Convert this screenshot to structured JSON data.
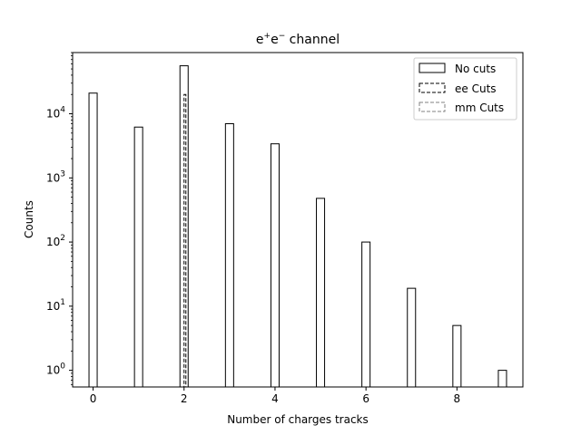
{
  "chart_data": {
    "type": "bar",
    "title_main": "e",
    "title_sup1": "+",
    "title_mid": "e",
    "title_sup2": "−",
    "title_tail": " channel",
    "xlabel": "Number of charges tracks",
    "ylabel": "Counts",
    "x_ticks": [
      "0",
      "2",
      "4",
      "6",
      "8"
    ],
    "y_ticks": [
      {
        "base": "10",
        "exp": "0"
      },
      {
        "base": "10",
        "exp": "1"
      },
      {
        "base": "10",
        "exp": "2"
      },
      {
        "base": "10",
        "exp": "3"
      },
      {
        "base": "10",
        "exp": "4"
      }
    ],
    "xlim": [
      -0.45,
      9.45
    ],
    "ylim": [
      0.55,
      90000
    ],
    "log_y": true,
    "grid": false,
    "legend_position": "top-right",
    "bin_width": 0.18,
    "series": [
      {
        "name": "No cuts",
        "style": "solid",
        "color": "#000000",
        "x": [
          0,
          1,
          2,
          3,
          4,
          5,
          6,
          7,
          8,
          9
        ],
        "values": [
          21000,
          6200,
          56000,
          7000,
          3400,
          480,
          100,
          19,
          5,
          1
        ]
      },
      {
        "name": "ee Cuts",
        "style": "dashed",
        "color": "#000000",
        "x": [
          2
        ],
        "values": [
          20000
        ]
      },
      {
        "name": "mm Cuts",
        "style": "dashed",
        "color": "#808080",
        "x": [],
        "values": []
      }
    ]
  }
}
